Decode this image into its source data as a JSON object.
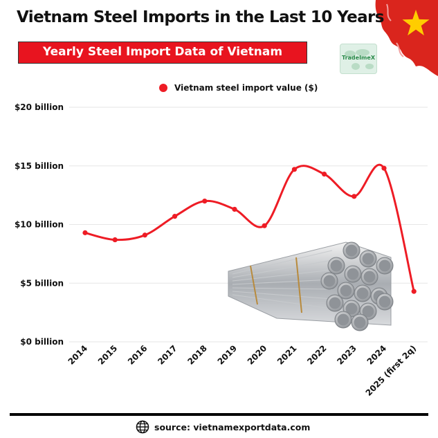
{
  "header": {
    "title": "Vietnam Steel Imports in the Last 10 Years",
    "subtitle": "Yearly Steel Import Data of Vietnam",
    "logo_text": "TradeImeX"
  },
  "footer": {
    "source": "source: vietnamexportdata.com",
    "icon": "globe-icon"
  },
  "colors": {
    "accent": "#ee1c25",
    "banner": "#e8141f",
    "flag_red": "#da251d",
    "flag_star": "#ffcd00",
    "grid": "#e6e6e6",
    "text": "#111111"
  },
  "chart_data": {
    "type": "line",
    "title": "Vietnam Steel Imports in the Last 10 Years",
    "subtitle": "Yearly Steel Import Data of Vietnam",
    "categories": [
      "2014",
      "2015",
      "2016",
      "2017",
      "2018",
      "2019",
      "2020",
      "2021",
      "2022",
      "2023",
      "2024",
      "2025 (first 2q)"
    ],
    "series": [
      {
        "name": "Vietnam steel import value ($)",
        "color": "#ee1c25",
        "values": [
          9.3,
          8.7,
          9.1,
          10.7,
          12.0,
          11.3,
          9.9,
          14.7,
          14.3,
          12.4,
          14.8,
          4.3
        ]
      }
    ],
    "y_unit": "billion USD",
    "ylim": [
      0,
      20
    ],
    "yticks": [
      0,
      5,
      10,
      15,
      20
    ],
    "ytick_labels": [
      "$0 billion",
      "$5 billion",
      "$10 billion",
      "$15 billion",
      "$20 billion"
    ],
    "xlabel": "",
    "ylabel": "",
    "grid": true,
    "legend_position": "top-center",
    "smooth": true
  }
}
